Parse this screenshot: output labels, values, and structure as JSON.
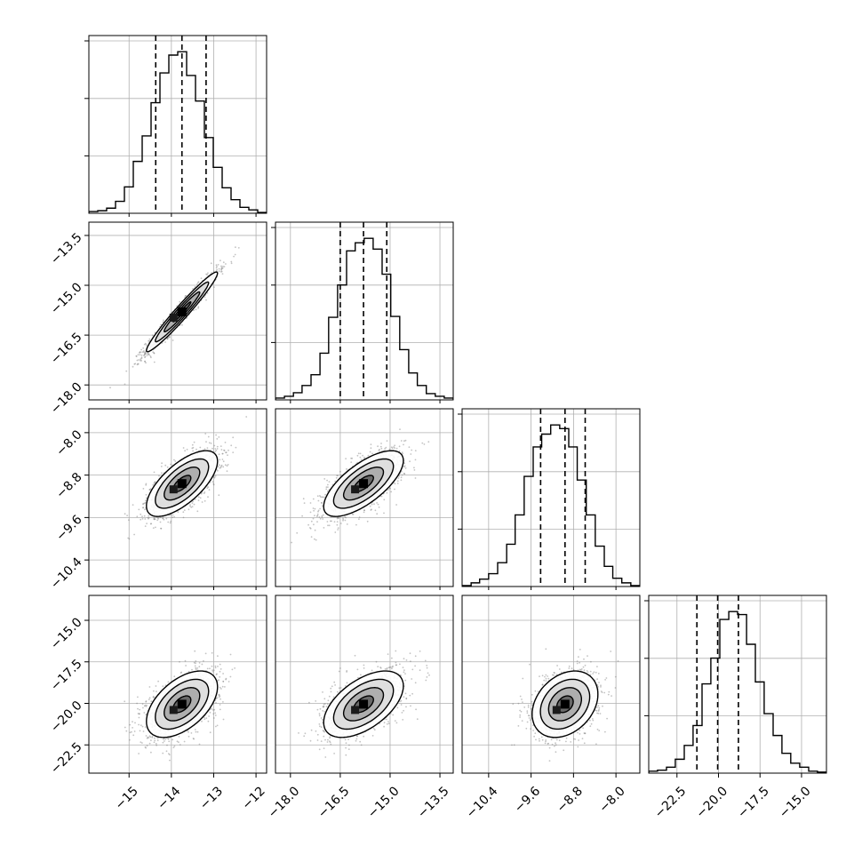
{
  "chart_data": {
    "type": "corner",
    "grid": true,
    "parameters": [
      {
        "ticks": [
          -15,
          -14,
          -13,
          -12
        ],
        "tick_labels": [
          "−15",
          "−14",
          "−13",
          "−12"
        ],
        "range": [
          -15.95,
          -11.75
        ]
      },
      {
        "ticks": [
          -18.0,
          -16.5,
          -15.0,
          -13.5
        ],
        "tick_labels": [
          "−18.0",
          "−16.5",
          "−15.0",
          "−13.5"
        ],
        "range": [
          -18.45,
          -13.1
        ]
      },
      {
        "ticks": [
          -10.4,
          -9.6,
          -8.8,
          -8.0
        ],
        "tick_labels": [
          "−10.4",
          "−9.6",
          "−8.8",
          "−8.0"
        ],
        "range": [
          -10.9,
          -7.55
        ]
      },
      {
        "ticks": [
          -22.5,
          -20.0,
          -17.5,
          -15.0
        ],
        "tick_labels": [
          "−22.5",
          "−20.0",
          "−17.5",
          "−15.0"
        ],
        "range": [
          -24.2,
          -13.5
        ]
      }
    ],
    "marginals": [
      {
        "quantiles": [
          -14.37,
          -13.75,
          -13.18
        ],
        "bins": [
          -15.95,
          -15.74,
          -15.53,
          -15.32,
          -15.11,
          -14.9,
          -14.69,
          -14.48,
          -14.27,
          -14.06,
          -13.85,
          -13.64,
          -13.43,
          -13.22,
          -13.01,
          -12.8,
          -12.59,
          -12.38,
          -12.17,
          -11.96,
          -11.75
        ],
        "counts": [
          2,
          3,
          6,
          14,
          31,
          61,
          91,
          130,
          165,
          186,
          190,
          162,
          132,
          89,
          54,
          30,
          16,
          7,
          4,
          1
        ]
      },
      {
        "quantiles": [
          -16.5,
          -15.8,
          -15.1
        ],
        "bins": [
          -18.45,
          -18.18,
          -17.91,
          -17.65,
          -17.38,
          -17.11,
          -16.85,
          -16.58,
          -16.31,
          -16.05,
          -15.78,
          -15.51,
          -15.24,
          -14.98,
          -14.71,
          -14.44,
          -14.18,
          -13.91,
          -13.64,
          -13.37,
          -13.1
        ],
        "counts": [
          2,
          4,
          8,
          16,
          28,
          52,
          92,
          128,
          166,
          175,
          180,
          168,
          140,
          93,
          56,
          30,
          16,
          7,
          4,
          2
        ]
      },
      {
        "quantiles": [
          -9.42,
          -8.96,
          -8.58
        ],
        "bins": [
          -10.9,
          -10.73,
          -10.57,
          -10.4,
          -10.23,
          -10.06,
          -9.9,
          -9.73,
          -9.56,
          -9.4,
          -9.23,
          -9.06,
          -8.89,
          -8.73,
          -8.56,
          -8.39,
          -8.22,
          -8.06,
          -7.89,
          -7.72,
          -7.55
        ],
        "counts": [
          1,
          4,
          8,
          14,
          26,
          46,
          78,
          120,
          152,
          166,
          176,
          172,
          152,
          116,
          78,
          44,
          22,
          9,
          4,
          1
        ]
      },
      {
        "quantiles": [
          -21.3,
          -20.05,
          -18.8
        ],
        "bins": [
          -24.2,
          -23.67,
          -23.13,
          -22.6,
          -22.06,
          -21.53,
          -20.99,
          -20.46,
          -19.92,
          -19.38,
          -18.85,
          -18.31,
          -17.78,
          -17.25,
          -16.71,
          -16.18,
          -15.65,
          -15.11,
          -14.57,
          -14.04,
          -13.5
        ],
        "counts": [
          2,
          3,
          6,
          14,
          28,
          48,
          90,
          116,
          155,
          163,
          160,
          130,
          92,
          60,
          38,
          20,
          10,
          6,
          2,
          1
        ]
      }
    ],
    "pairs": [
      {
        "x": 0,
        "y": 1,
        "center": [
          -13.75,
          -15.8
        ],
        "sigma": [
          0.42,
          0.6
        ],
        "rho": 0.97
      },
      {
        "x": 0,
        "y": 2,
        "center": [
          -13.75,
          -8.96
        ],
        "sigma": [
          0.42,
          0.31
        ],
        "rho": 0.68
      },
      {
        "x": 1,
        "y": 2,
        "center": [
          -15.8,
          -8.96
        ],
        "sigma": [
          0.6,
          0.31
        ],
        "rho": 0.7
      },
      {
        "x": 0,
        "y": 3,
        "center": [
          -13.75,
          -20.05
        ],
        "sigma": [
          0.42,
          1.0
        ],
        "rho": 0.52
      },
      {
        "x": 1,
        "y": 3,
        "center": [
          -15.8,
          -20.05
        ],
        "sigma": [
          0.6,
          1.0
        ],
        "rho": 0.55
      },
      {
        "x": 2,
        "y": 3,
        "center": [
          -8.96,
          -20.05
        ],
        "sigma": [
          0.31,
          1.0
        ],
        "rho": 0.3
      }
    ],
    "contour_levels_sigma": [
      0.5,
      1.0,
      1.5,
      2.0
    ],
    "colors": {
      "line": "#000000",
      "grid": "#b0b0b0",
      "points": "#7a7a7a",
      "density_dark": "#000000",
      "density_light": "#ffffff"
    }
  }
}
